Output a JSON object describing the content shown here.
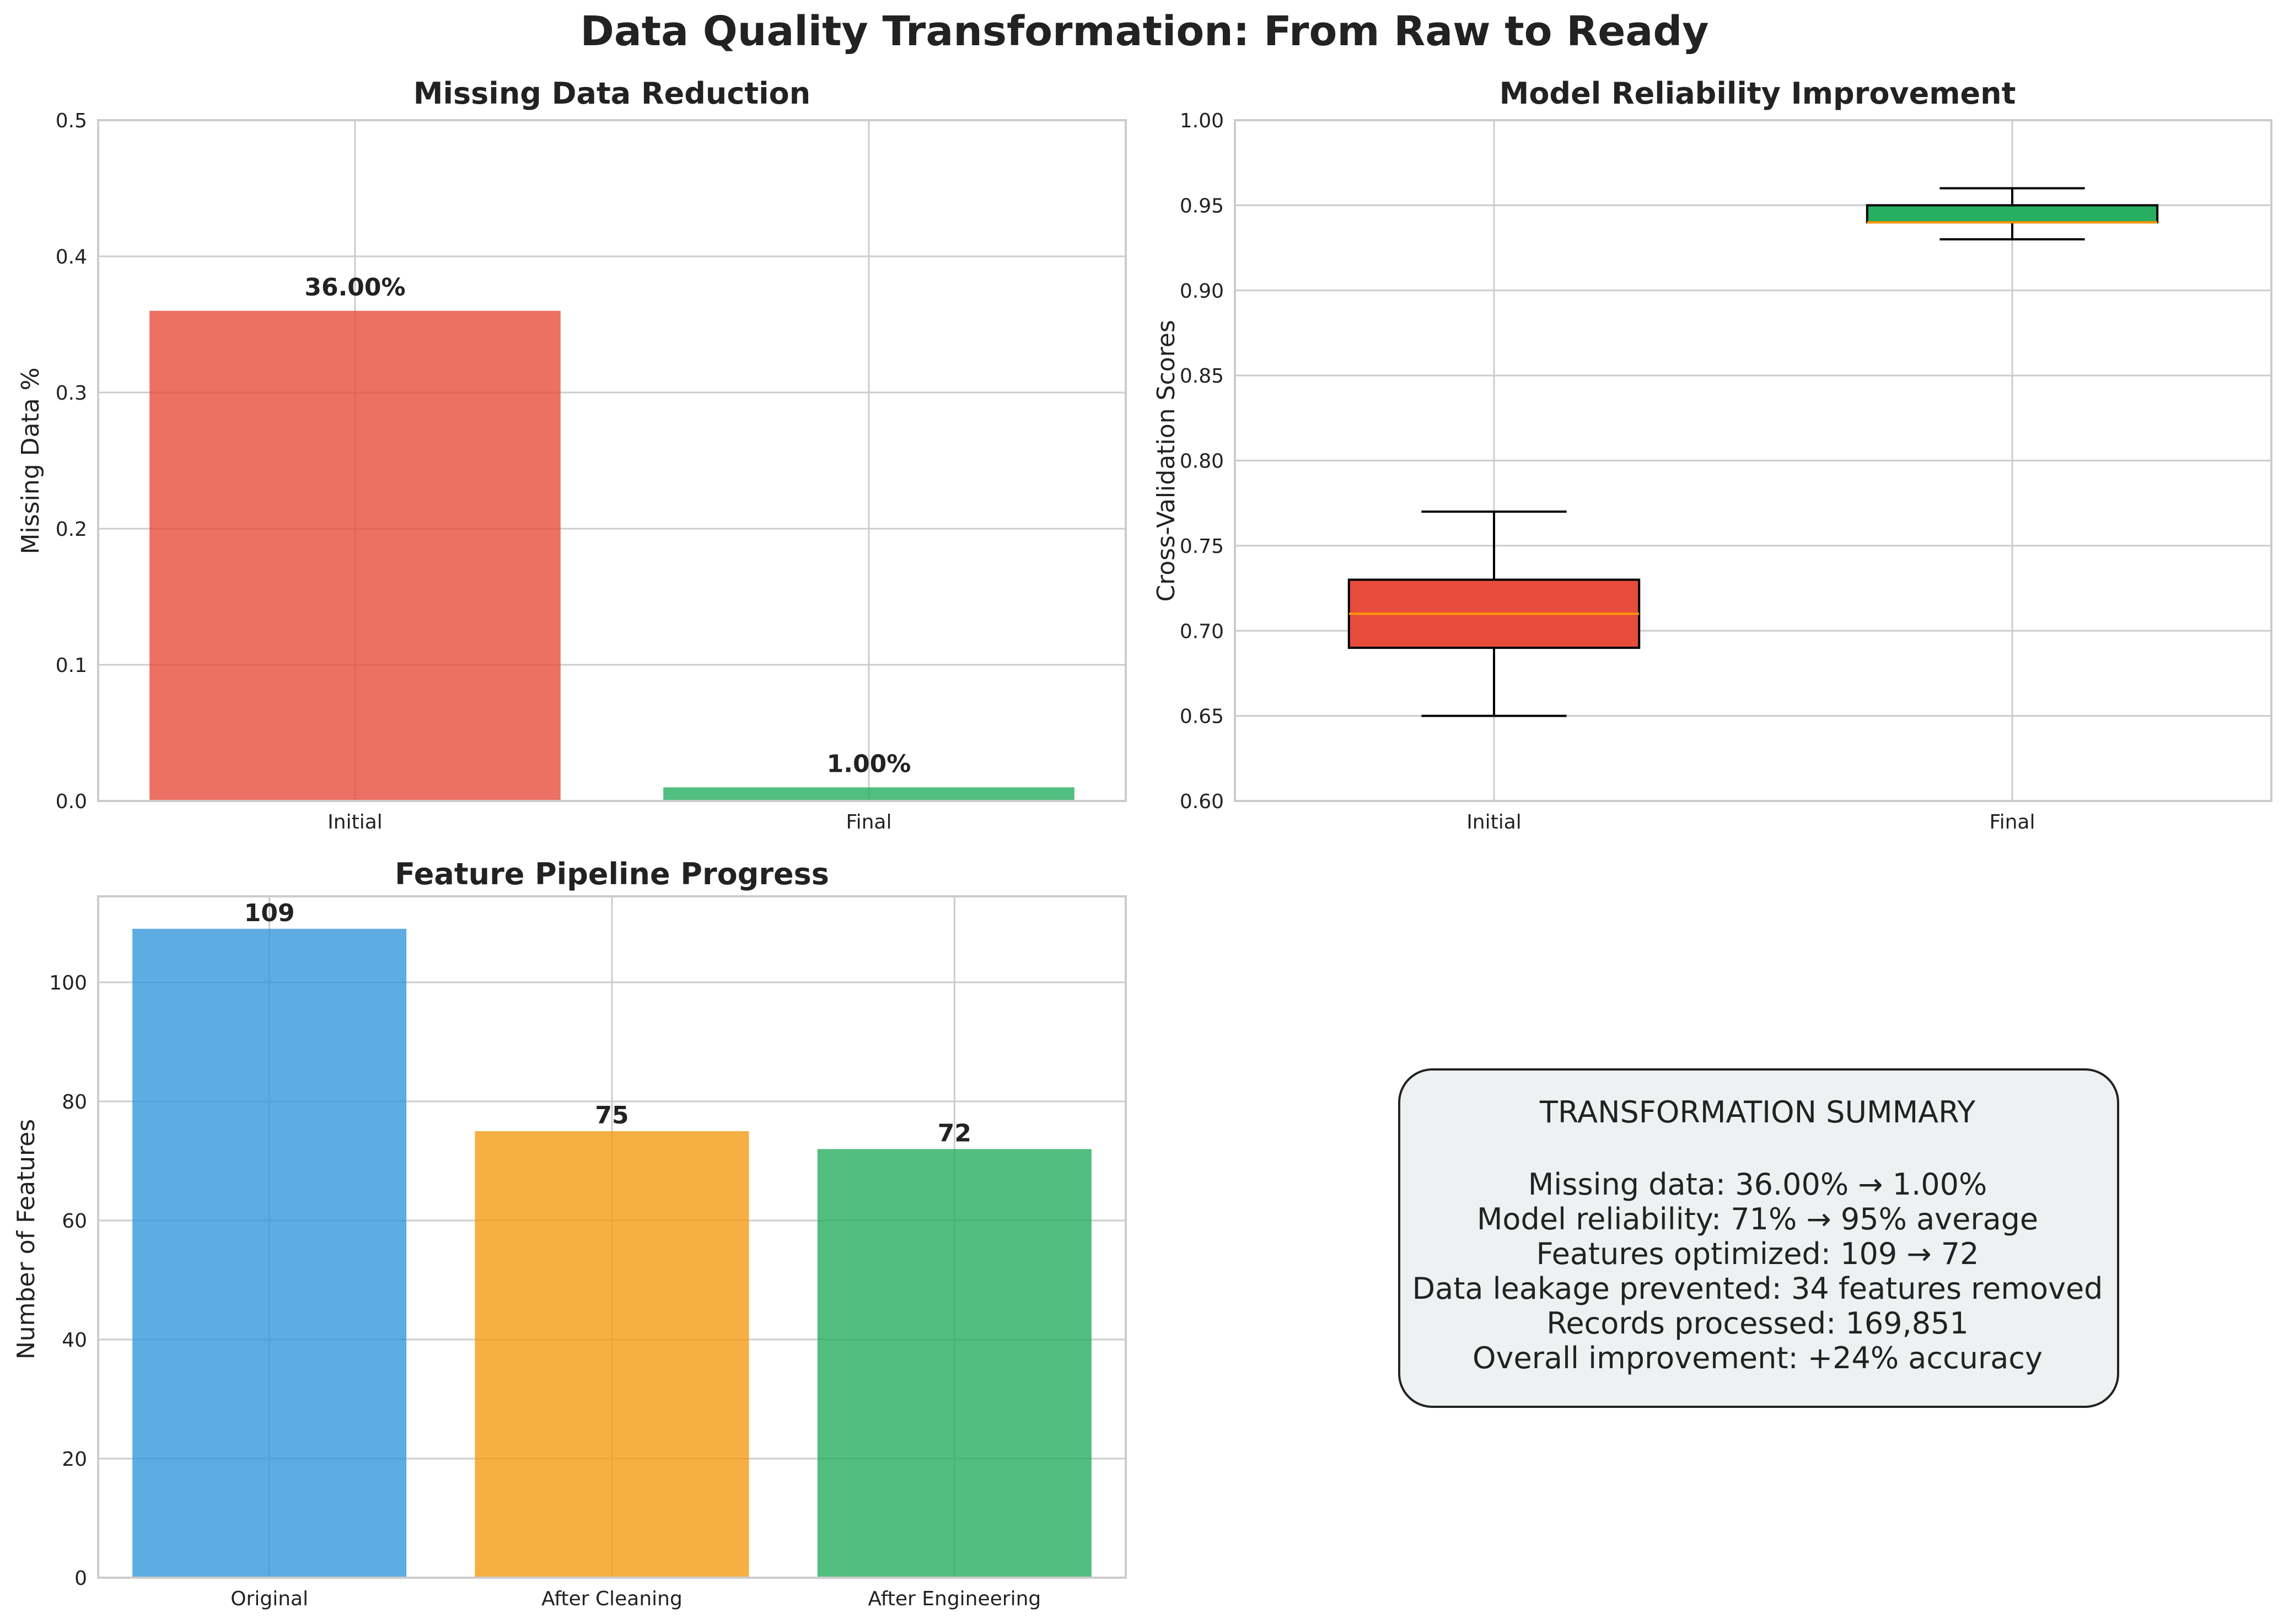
{
  "figure_title": "Data Quality Transformation: From Raw to Ready",
  "chart_data": [
    {
      "type": "bar",
      "title": "Missing Data Reduction",
      "xlabel": "",
      "ylabel": "Missing Data %",
      "categories": [
        "Initial",
        "Final"
      ],
      "values": [
        0.36,
        0.01
      ],
      "data_labels": [
        "36.00%",
        "1.00%"
      ],
      "colors": [
        "#e74c3c",
        "#27ae60"
      ],
      "ylim": [
        0,
        0.5
      ],
      "yticks": [
        "0.0",
        "0.1",
        "0.2",
        "0.3",
        "0.4",
        "0.5"
      ],
      "grid": true
    },
    {
      "type": "box",
      "title": "Model Reliability Improvement",
      "xlabel": "",
      "ylabel": "Cross-Validation Scores",
      "categories": [
        "Initial",
        "Final"
      ],
      "boxes": [
        {
          "whisker_low": 0.65,
          "q1": 0.69,
          "median": 0.71,
          "q3": 0.73,
          "whisker_high": 0.77,
          "color": "#e74c3c"
        },
        {
          "whisker_low": 0.93,
          "q1": 0.94,
          "median": 0.94,
          "q3": 0.95,
          "whisker_high": 0.96,
          "color": "#27ae60"
        }
      ],
      "median_color": "#ff9900",
      "ylim": [
        0.6,
        1.0
      ],
      "yticks": [
        "0.60",
        "0.65",
        "0.70",
        "0.75",
        "0.80",
        "0.85",
        "0.90",
        "0.95",
        "1.00"
      ],
      "grid": true
    },
    {
      "type": "bar",
      "title": "Feature Pipeline Progress",
      "xlabel": "",
      "ylabel": "Number of Features",
      "categories": [
        "Original",
        "After Cleaning",
        "After Engineering"
      ],
      "values": [
        109,
        75,
        72
      ],
      "data_labels": [
        "109",
        "75",
        "72"
      ],
      "colors": [
        "#3498db",
        "#f39c12",
        "#27ae60"
      ],
      "ylim": [
        0,
        114.45
      ],
      "yticks": [
        "0",
        "20",
        "40",
        "60",
        "80",
        "100"
      ],
      "grid": true
    }
  ],
  "summary": {
    "heading": "TRANSFORMATION SUMMARY",
    "lines": [
      "Missing data: 36.00% → 1.00%",
      "Model reliability: 71% → 95% average",
      "Features optimized: 109 → 72",
      "Data leakage prevented: 34 features removed",
      "Records processed: 169,851",
      "Overall improvement: +24% accuracy"
    ]
  }
}
